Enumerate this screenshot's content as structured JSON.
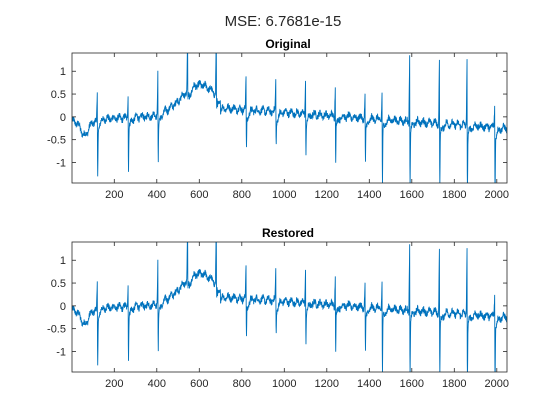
{
  "figure": {
    "suptitle": "MSE: 6.7681e-15",
    "line_color": "#0072BD"
  },
  "chart_data": [
    {
      "type": "line",
      "title": "Original",
      "xlabel": "",
      "ylabel": "",
      "xlim": [
        1,
        2048
      ],
      "ylim": [
        -1.45,
        1.4
      ],
      "xticks": [
        200,
        400,
        600,
        800,
        1000,
        1200,
        1400,
        1600,
        1800,
        2000
      ],
      "yticks": [
        -1,
        -0.5,
        0,
        0.5,
        1
      ],
      "xtick_labels": [
        "200",
        "400",
        "600",
        "800",
        "1000",
        "1200",
        "1400",
        "1600",
        "1800",
        "2000"
      ],
      "ytick_labels": [
        "-1",
        "-0.5",
        "0",
        "0.5",
        "1"
      ],
      "grid": false,
      "series": [
        {
          "beat_positions": [
            120,
            265,
            405,
            545,
            680,
            820,
            960,
            1100,
            1240,
            1380,
            1460,
            1590,
            1730,
            1860,
            1990
          ],
          "beat_peaks": [
            0.5,
            0.55,
            0.9,
            1.2,
            1.35,
            0.75,
            0.7,
            0.72,
            0.65,
            0.5,
            0.55,
            1.45,
            1.45,
            1.45,
            0.5
          ],
          "beat_troughs": [
            -1.3,
            -1.15,
            -1.05,
            -0.2,
            -0.3,
            -0.9,
            -0.7,
            -0.8,
            -0.95,
            -1.05,
            -1.45,
            -1.45,
            -1.45,
            -1.4,
            -1.45
          ]
        }
      ]
    },
    {
      "type": "line",
      "title": "Restored",
      "xlabel": "",
      "ylabel": "",
      "xlim": [
        1,
        2048
      ],
      "ylim": [
        -1.45,
        1.4
      ],
      "xticks": [
        200,
        400,
        600,
        800,
        1000,
        1200,
        1400,
        1600,
        1800,
        2000
      ],
      "yticks": [
        -1,
        -0.5,
        0,
        0.5,
        1
      ],
      "xtick_labels": [
        "200",
        "400",
        "600",
        "800",
        "1000",
        "1200",
        "1400",
        "1600",
        "1800",
        "2000"
      ],
      "ytick_labels": [
        "-1",
        "-0.5",
        "0",
        "0.5",
        "1"
      ],
      "grid": false,
      "series": [
        {
          "beat_positions": [
            120,
            265,
            405,
            545,
            680,
            820,
            960,
            1100,
            1240,
            1380,
            1460,
            1590,
            1730,
            1860,
            1990
          ],
          "beat_peaks": [
            0.5,
            0.55,
            0.9,
            1.2,
            1.35,
            0.75,
            0.7,
            0.72,
            0.65,
            0.5,
            0.55,
            1.45,
            1.45,
            1.45,
            0.5
          ],
          "beat_troughs": [
            -1.3,
            -1.15,
            -1.05,
            -0.2,
            -0.3,
            -0.9,
            -0.7,
            -0.8,
            -0.95,
            -1.05,
            -1.45,
            -1.45,
            -1.45,
            -1.4,
            -1.45
          ]
        }
      ]
    }
  ]
}
